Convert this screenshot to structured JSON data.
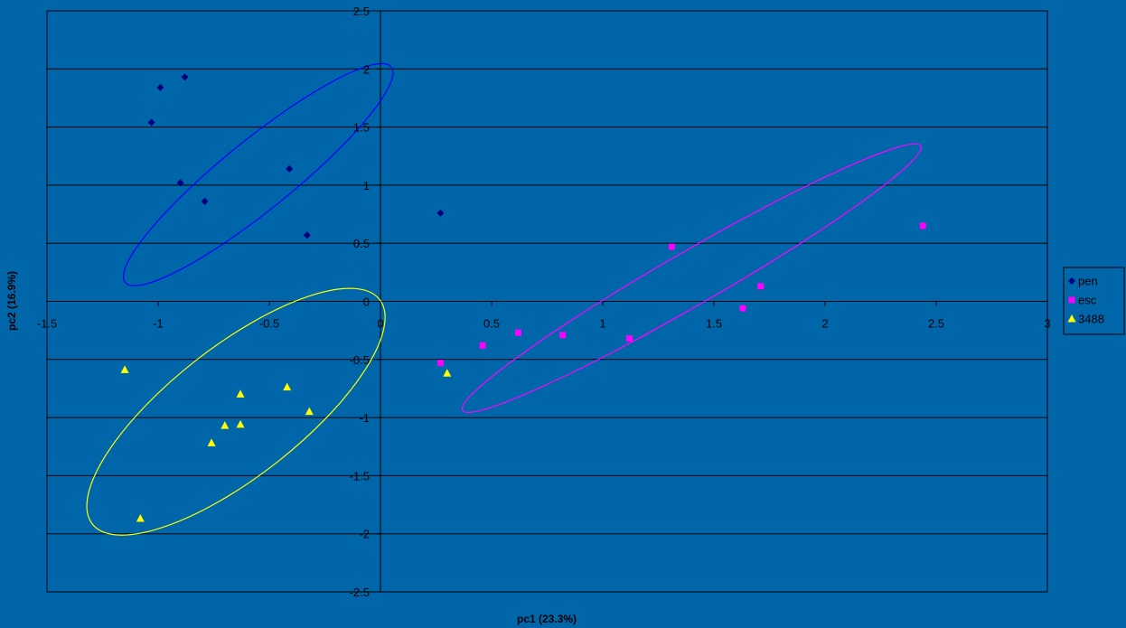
{
  "colors": {
    "background": "#0066AA",
    "plot_border": "#000000",
    "gridline": "#000000"
  },
  "chart_data": {
    "type": "scatter",
    "title": "",
    "xlabel": "pc1 (23.3%)",
    "ylabel": "pc2 (16.9%)",
    "xlim": [
      -1.5,
      3
    ],
    "ylim": [
      -2.5,
      2.5
    ],
    "x_ticks": [
      -1.5,
      -1,
      -0.5,
      0,
      0.5,
      1,
      1.5,
      2,
      2.5,
      3
    ],
    "y_ticks": [
      2.5,
      2,
      1.5,
      1,
      0.5,
      0,
      -0.5,
      -1,
      -1.5,
      -2,
      -2.5
    ],
    "x_tick_labels": [
      "-1.5",
      "-1",
      "-0.5",
      "0",
      "0.5",
      "1",
      "1.5",
      "2",
      "2.5",
      "3"
    ],
    "y_tick_labels": [
      "2.5",
      "2",
      "1.5",
      "1",
      "0.5",
      "0",
      "-0.5",
      "-1",
      "-1.5",
      "-2",
      "-2.5"
    ],
    "grid": "horizontal",
    "legend_position": "right",
    "series": [
      {
        "name": "pen",
        "marker": "diamond",
        "color": "#000080",
        "points": [
          [
            -1.03,
            1.54
          ],
          [
            -0.99,
            1.84
          ],
          [
            -0.88,
            1.93
          ],
          [
            -0.9,
            1.02
          ],
          [
            -0.79,
            0.86
          ],
          [
            -0.41,
            1.14
          ],
          [
            -0.33,
            0.57
          ],
          [
            0.27,
            0.76
          ]
        ]
      },
      {
        "name": "esc",
        "marker": "square",
        "color": "#FF00FF",
        "points": [
          [
            0.27,
            -0.53
          ],
          [
            0.46,
            -0.38
          ],
          [
            0.62,
            -0.27
          ],
          [
            0.82,
            -0.29
          ],
          [
            1.12,
            -0.32
          ],
          [
            1.31,
            0.47
          ],
          [
            1.63,
            -0.06
          ],
          [
            1.71,
            0.13
          ],
          [
            2.44,
            0.65
          ]
        ]
      },
      {
        "name": "3488",
        "marker": "triangle",
        "color": "#FFFF00",
        "points": [
          [
            -1.15,
            -0.59
          ],
          [
            -1.08,
            -1.87
          ],
          [
            -0.76,
            -1.22
          ],
          [
            -0.7,
            -1.07
          ],
          [
            -0.63,
            -1.06
          ],
          [
            -0.63,
            -0.8
          ],
          [
            -0.42,
            -0.74
          ],
          [
            -0.32,
            -0.95
          ],
          [
            0.3,
            -0.62
          ]
        ]
      }
    ],
    "ellipses": [
      {
        "color": "#0000FF",
        "cx": -0.55,
        "cy": 1.09,
        "rx": 0.77,
        "ry": 0.3,
        "angle": -39
      },
      {
        "color": "#FF00FF",
        "cx": 1.4,
        "cy": 0.2,
        "rx": 1.19,
        "ry": 0.23,
        "angle": -30
      },
      {
        "color": "#FFFF00",
        "cx": -0.65,
        "cy": -0.95,
        "rx": 0.82,
        "ry": 0.56,
        "angle": -38
      }
    ]
  }
}
